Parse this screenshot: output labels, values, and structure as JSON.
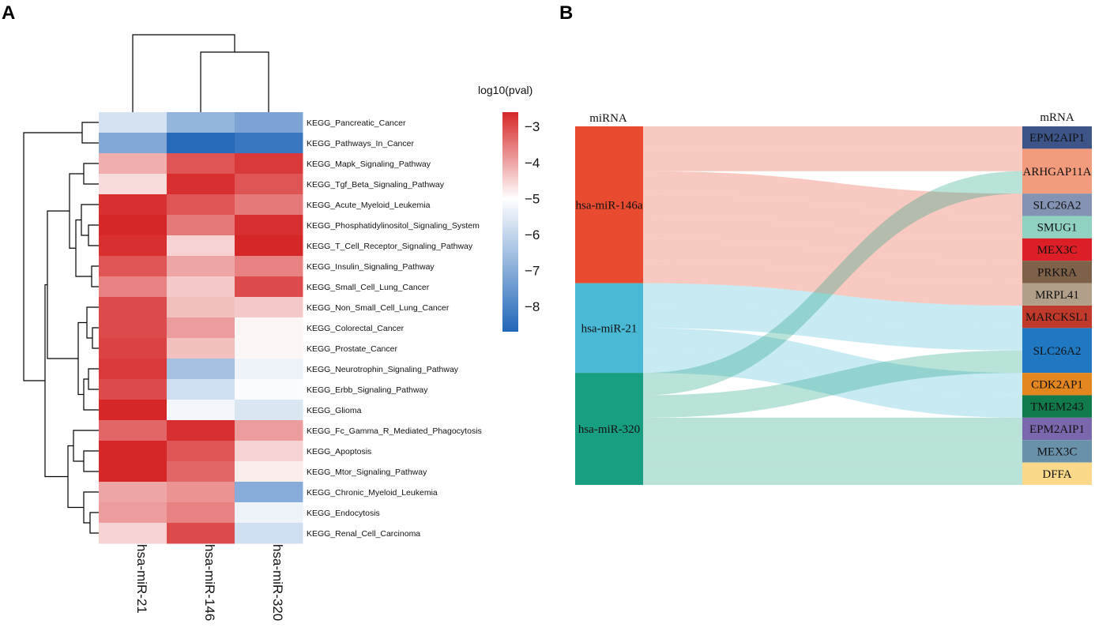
{
  "panels": {
    "a_label": "A",
    "b_label": "B"
  },
  "chart_data": [
    {
      "type": "heatmap",
      "title": "",
      "columns": [
        "hsa-miR-21",
        "hsa-miR-146",
        "hsa-miR-320"
      ],
      "rows": [
        "KEGG_Pancreatic_Cancer",
        "KEGG_Pathways_In_Cancer",
        "KEGG_Mapk_Signaling_Pathway",
        "KEGG_Tgf_Beta_Signaling_Pathway",
        "KEGG_Acute_Myeloid_Leukemia",
        "KEGG_Phosphatidylinositol_Signaling_System",
        "KEGG_T_Cell_Receptor_Signaling_Pathway",
        "KEGG_Insulin_Signaling_Pathway",
        "KEGG_Small_Cell_Lung_Cancer",
        "KEGG_Non_Small_Cell_Lung_Cancer",
        "KEGG_Colorectal_Cancer",
        "KEGG_Prostate_Cancer",
        "KEGG_Neurotrophin_Signaling_Pathway",
        "KEGG_Erbb_Signaling_Pathway",
        "KEGG_Glioma",
        "KEGG_Fc_Gamma_R_Mediated_Phagocytosis",
        "KEGG_Apoptosis",
        "KEGG_Mtor_Signaling_Pathway",
        "KEGG_Chronic_Myeloid_Leukemia",
        "KEGG_Endocytosis",
        "KEGG_Renal_Cell_Carcinoma"
      ],
      "values": [
        [
          -5.7,
          -6.8,
          -7.2
        ],
        [
          -7.1,
          -8.6,
          -8.3
        ],
        [
          -4.1,
          -3.1,
          -2.8
        ],
        [
          -4.6,
          -2.7,
          -3.1
        ],
        [
          -2.7,
          -3.1,
          -3.5
        ],
        [
          -2.6,
          -3.5,
          -2.7
        ],
        [
          -2.7,
          -4.5,
          -2.6
        ],
        [
          -3.1,
          -4.0,
          -3.6
        ],
        [
          -3.6,
          -4.4,
          -3.0
        ],
        [
          -3.0,
          -4.3,
          -4.4
        ],
        [
          -3.0,
          -3.9,
          -4.9
        ],
        [
          -2.9,
          -4.3,
          -4.9
        ],
        [
          -2.8,
          -6.5,
          -5.3
        ],
        [
          -3.0,
          -5.8,
          -5.1
        ],
        [
          -2.6,
          -5.2,
          -5.6
        ],
        [
          -3.3,
          -2.7,
          -3.9
        ],
        [
          -2.6,
          -3.1,
          -4.5
        ],
        [
          -2.6,
          -3.3,
          -4.8
        ],
        [
          -4.0,
          -3.8,
          -7.0
        ],
        [
          -3.9,
          -3.6,
          -5.3
        ],
        [
          -4.5,
          -3.0,
          -5.8
        ]
      ],
      "legend": {
        "title": "log10(pval)",
        "ticks": [
          -3,
          -4,
          -5,
          -6,
          -7,
          -8
        ],
        "range": [
          -8.7,
          -2.6
        ]
      },
      "colors": {
        "low": "#2166b8",
        "mid": "#ffffff",
        "high": "#d62728"
      }
    },
    {
      "type": "sankey",
      "left_header": "miRNA",
      "right_header": "mRNA",
      "sources": [
        {
          "name": "hsa-miR-146a",
          "color": "#e94b30"
        },
        {
          "name": "hsa-miR-21",
          "color": "#4ab9d6"
        },
        {
          "name": "hsa-miR-320",
          "color": "#189e80"
        }
      ],
      "targets": [
        {
          "name": "EPM2AIP1",
          "color": "#3c5487"
        },
        {
          "name": "ARHGAP11A",
          "color": "#f29b7d"
        },
        {
          "name": "SLC26A2",
          "color": "#8492b3"
        },
        {
          "name": "SMUG1",
          "color": "#90d1c2"
        },
        {
          "name": "MEX3C",
          "color": "#dc1f26"
        },
        {
          "name": "PRKRA",
          "color": "#7e6149"
        },
        {
          "name": "MRPL41",
          "color": "#b19f8a"
        },
        {
          "name": "MARCKSL1",
          "color": "#c1392b"
        },
        {
          "name": "SLC26A2",
          "color": "#1f78c1"
        },
        {
          "name": "CDK2AP1",
          "color": "#e3861f"
        },
        {
          "name": "TMEM243",
          "color": "#127b4c"
        },
        {
          "name": "EPM2AIP1",
          "color": "#7b67ad"
        },
        {
          "name": "MEX3C",
          "color": "#6991aa"
        },
        {
          "name": "DFFA",
          "color": "#fad98a"
        }
      ],
      "flows": [
        {
          "source": 0,
          "target": 0,
          "value": 1
        },
        {
          "source": 0,
          "target": 1,
          "value": 1
        },
        {
          "source": 0,
          "target": 2,
          "value": 1
        },
        {
          "source": 0,
          "target": 3,
          "value": 1
        },
        {
          "source": 0,
          "target": 4,
          "value": 1
        },
        {
          "source": 0,
          "target": 5,
          "value": 1
        },
        {
          "source": 0,
          "target": 6,
          "value": 1
        },
        {
          "source": 1,
          "target": 7,
          "value": 1
        },
        {
          "source": 1,
          "target": 8,
          "value": 1
        },
        {
          "source": 1,
          "target": 9,
          "value": 1
        },
        {
          "source": 1,
          "target": 10,
          "value": 1
        },
        {
          "source": 2,
          "target": 1,
          "value": 1
        },
        {
          "source": 2,
          "target": 8,
          "value": 1
        },
        {
          "source": 2,
          "target": 11,
          "value": 1
        },
        {
          "source": 2,
          "target": 12,
          "value": 1
        },
        {
          "source": 2,
          "target": 13,
          "value": 1
        }
      ]
    }
  ]
}
